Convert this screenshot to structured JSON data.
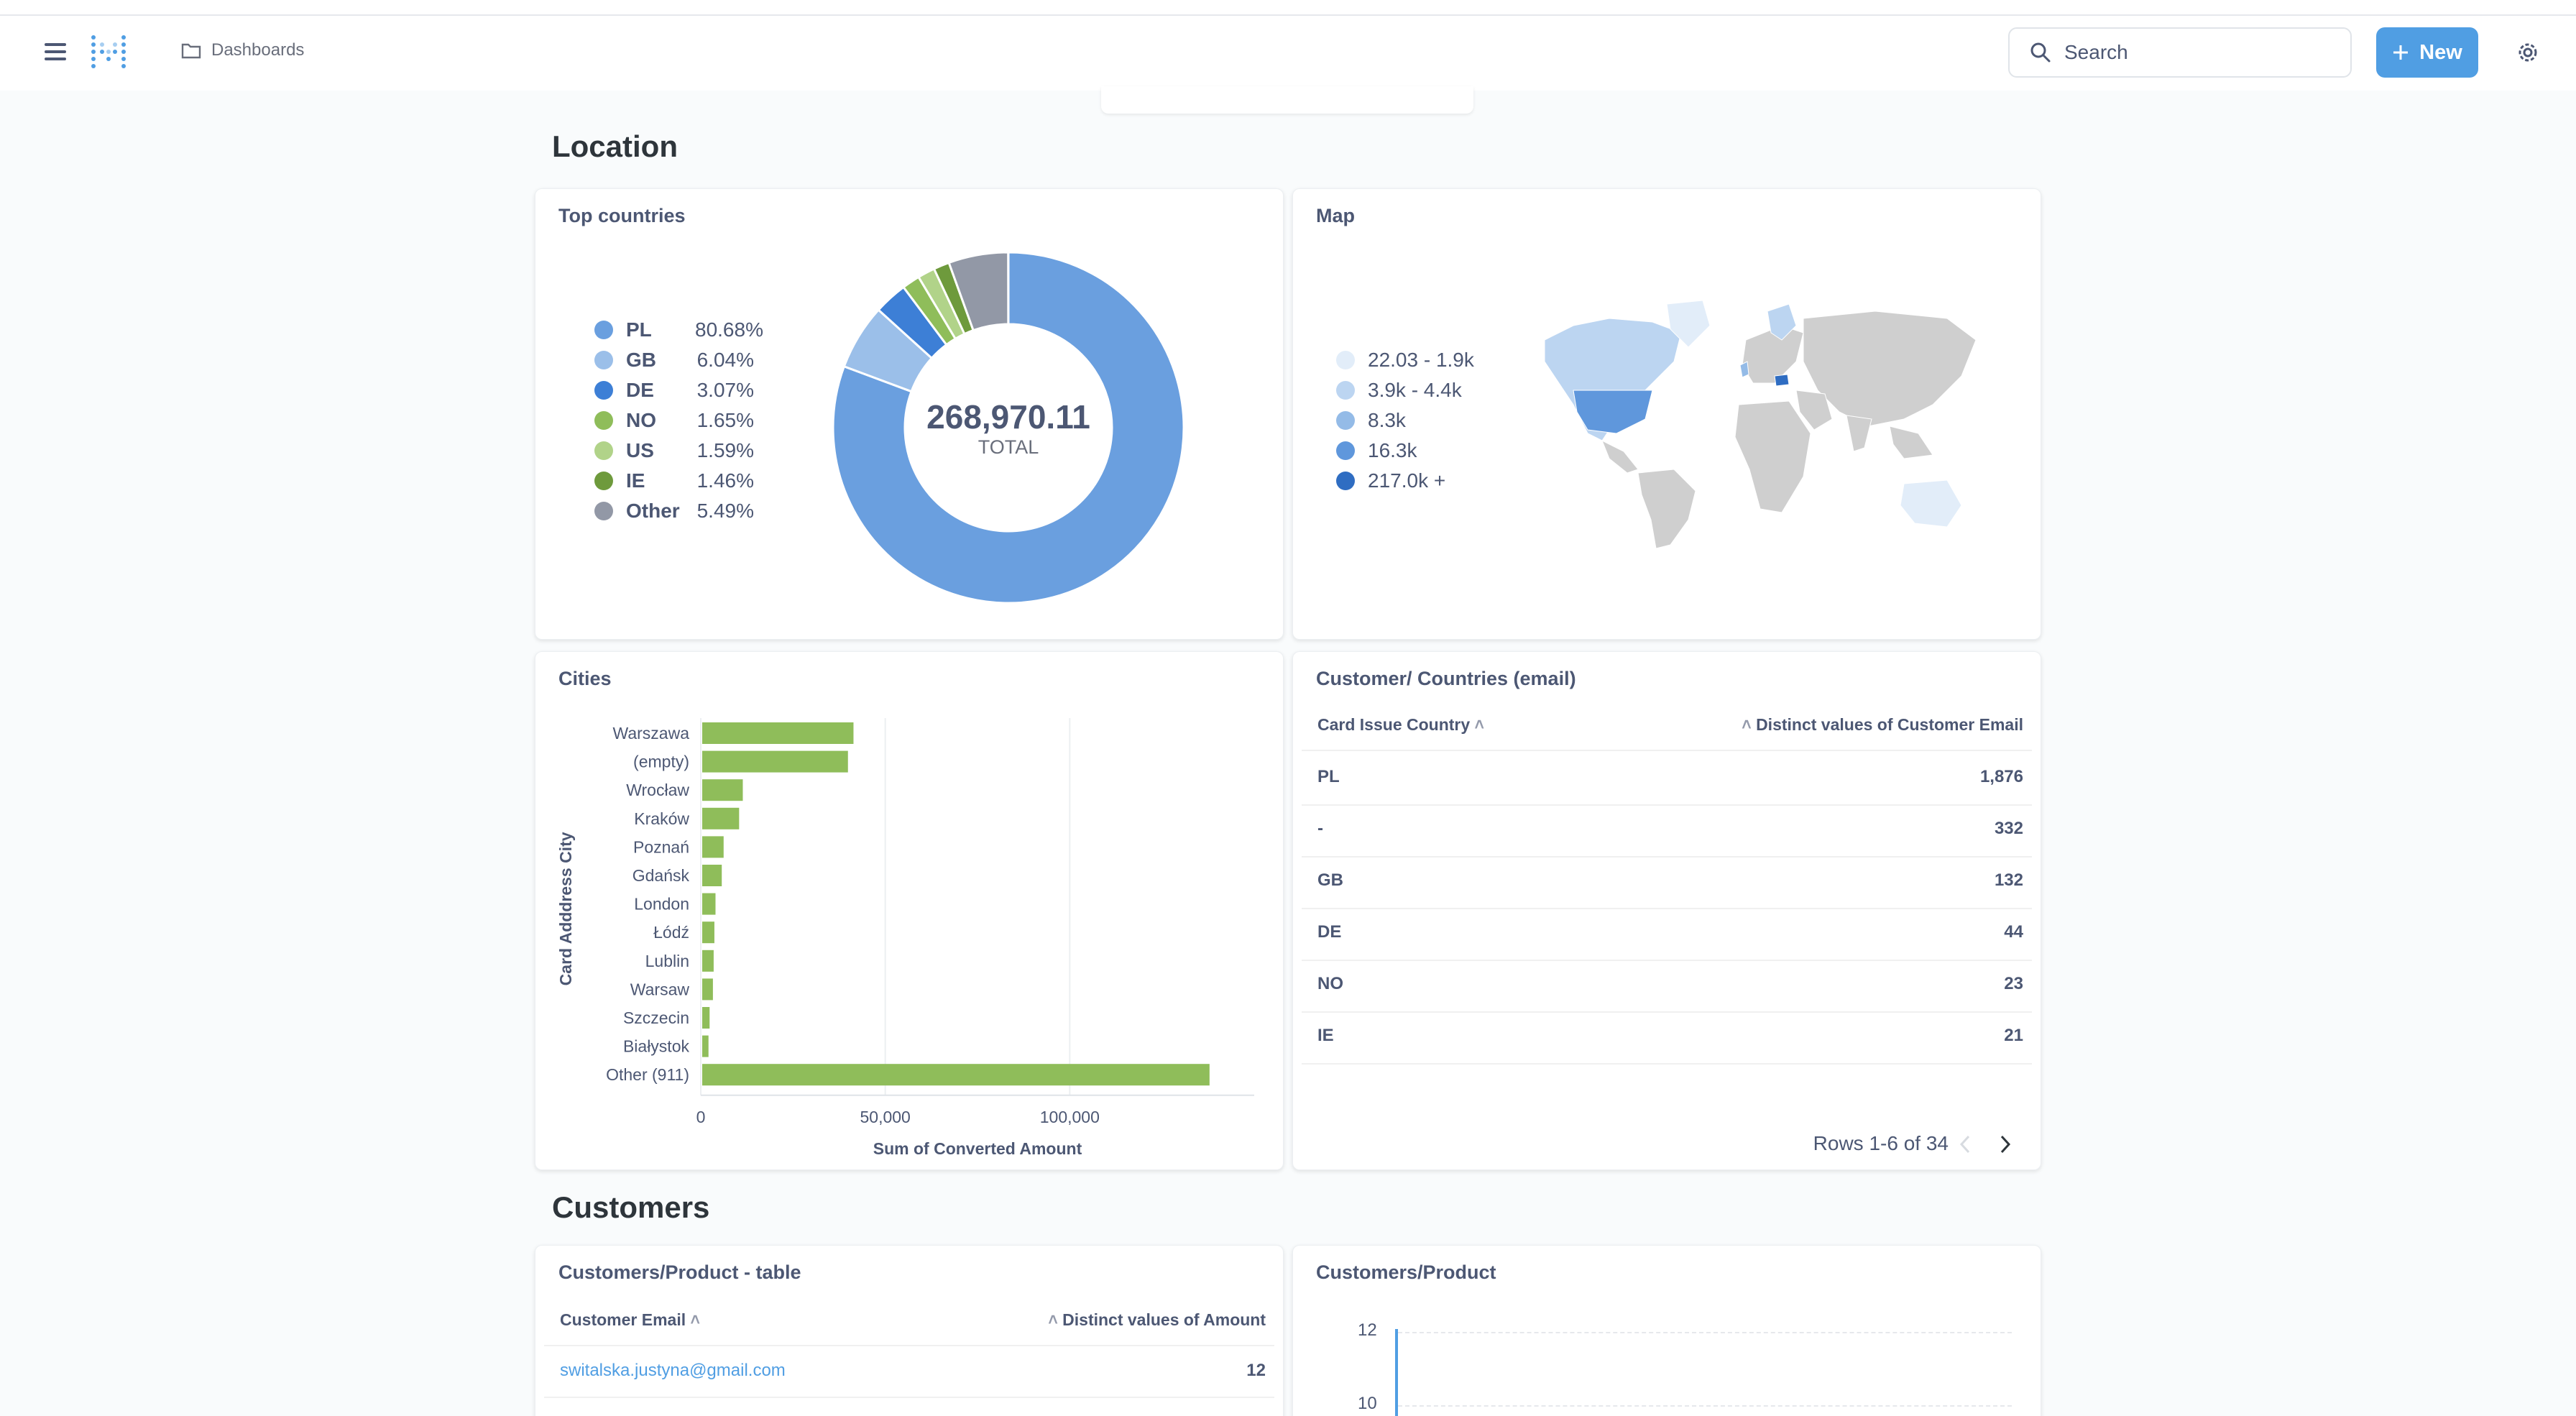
{
  "nav": {
    "breadcrumb": "Dashboards",
    "search_placeholder": "Search",
    "new_label": "New"
  },
  "sections": {
    "location": "Location",
    "customers": "Customers"
  },
  "top_countries": {
    "title": "Top countries",
    "total_value": "268,970.11",
    "total_label": "TOTAL",
    "legend": [
      {
        "label": "PL",
        "value": "80.68%",
        "color": "#6a9fdf"
      },
      {
        "label": "GB",
        "value": "6.04%",
        "color": "#9bbfe9"
      },
      {
        "label": "DE",
        "value": "3.07%",
        "color": "#3d7fd6"
      },
      {
        "label": "NO",
        "value": "1.65%",
        "color": "#8fbd5a"
      },
      {
        "label": "US",
        "value": "1.59%",
        "color": "#b1d389"
      },
      {
        "label": "IE",
        "value": "1.46%",
        "color": "#6e9a3c"
      },
      {
        "label": "Other",
        "value": "5.49%",
        "color": "#9298a6"
      }
    ]
  },
  "map": {
    "title": "Map",
    "legend": [
      {
        "label": "22.03 - 1.9k",
        "color": "#e2edf9"
      },
      {
        "label": "3.9k - 4.4k",
        "color": "#bcd5f1"
      },
      {
        "label": "8.3k",
        "color": "#94bbe7"
      },
      {
        "label": "16.3k",
        "color": "#5f97dc"
      },
      {
        "label": "217.0k +",
        "color": "#2f6dc2"
      }
    ]
  },
  "cities": {
    "title": "Cities",
    "ylabel": "Card Adddress City",
    "xlabel": "Sum of Converted Amount",
    "tick_labels": [
      "0",
      "50,000",
      "100,000"
    ]
  },
  "chart_data": {
    "type": "bar",
    "orientation": "horizontal",
    "categories": [
      "Warszawa",
      "(empty)",
      "Wrocław",
      "Kraków",
      "Poznań",
      "Gdańsk",
      "London",
      "Łódź",
      "Lublin",
      "Warsaw",
      "Szczecin",
      "Białystok",
      "Other (911)"
    ],
    "values": [
      41000,
      39500,
      11000,
      10000,
      5800,
      5300,
      3600,
      3300,
      3100,
      2900,
      2000,
      1700,
      137500
    ],
    "xlabel": "Sum of Converted Amount",
    "ylabel": "Card Adddress City",
    "xlim": [
      0,
      150000
    ],
    "xticks": [
      0,
      50000,
      100000
    ],
    "grid": true,
    "color": "#8fbd5a"
  },
  "customer_countries": {
    "title": "Customer/ Countries (email)",
    "col1": "Card Issue Country",
    "col2": "Distinct values of Customer Email",
    "rows": [
      {
        "country": "PL",
        "count": "1,876"
      },
      {
        "country": "-",
        "count": "332"
      },
      {
        "country": "GB",
        "count": "132"
      },
      {
        "country": "DE",
        "count": "44"
      },
      {
        "country": "NO",
        "count": "23"
      },
      {
        "country": "IE",
        "count": "21"
      }
    ],
    "pagination": "Rows 1-6 of 34"
  },
  "customers_product_table": {
    "title": "Customers/Product - table",
    "col1": "Customer Email",
    "col2": "Distinct values of Amount",
    "rows": [
      {
        "email": "switalska.justyna@gmail.com",
        "count": "12"
      }
    ]
  },
  "customers_product_chart": {
    "title": "Customers/Product",
    "y_ticks": [
      "12",
      "10"
    ]
  }
}
